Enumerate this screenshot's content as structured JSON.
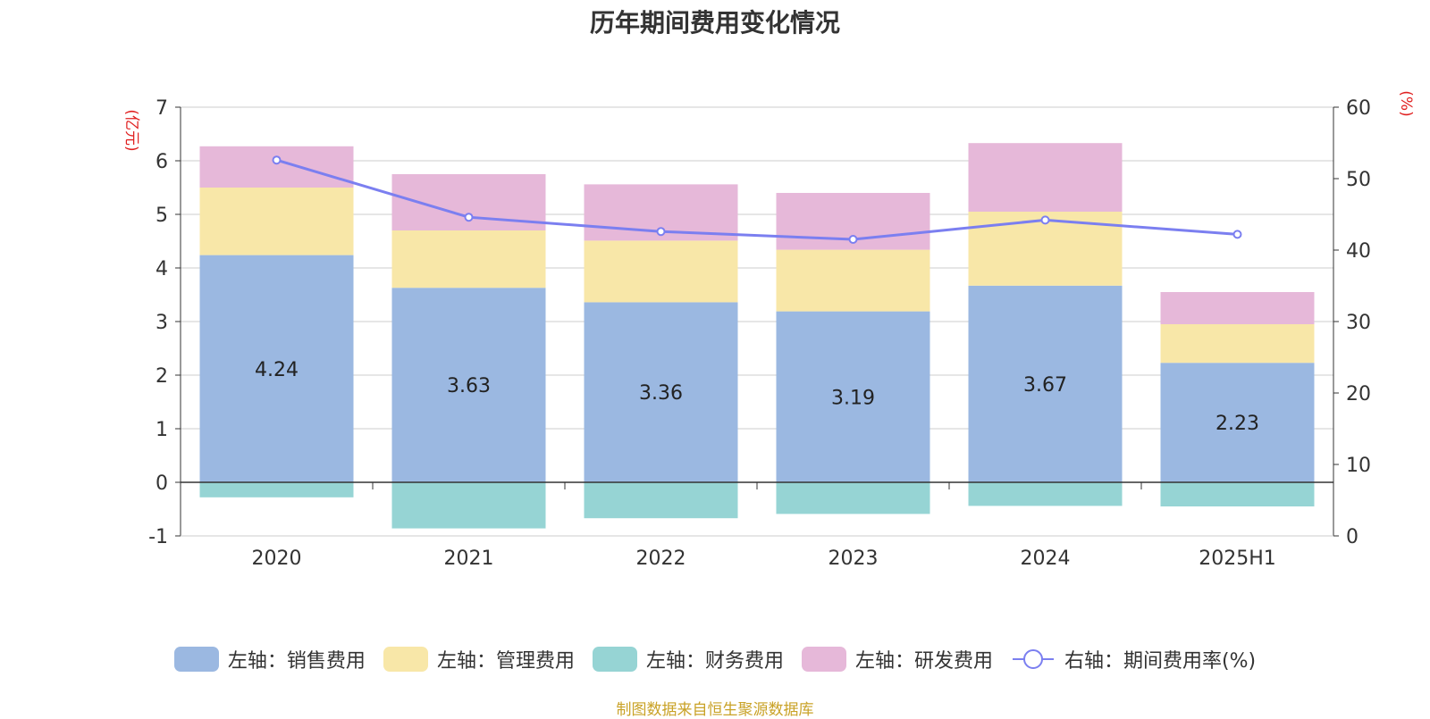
{
  "chart_data": {
    "type": "bar",
    "title": "历年期间费用变化情况",
    "categories": [
      "2020",
      "2021",
      "2022",
      "2023",
      "2024",
      "2025H1"
    ],
    "left_axis": {
      "unit_label": "(亿元)",
      "ylim": [
        -1,
        7
      ],
      "ticks": [
        "-1",
        "0",
        "1",
        "2",
        "3",
        "4",
        "5",
        "6",
        "7"
      ]
    },
    "right_axis": {
      "unit_label": "(%)",
      "ylim": [
        0,
        60
      ],
      "ticks": [
        "0",
        "10",
        "20",
        "30",
        "40",
        "50",
        "60"
      ]
    },
    "stacked": true,
    "series": [
      {
        "name": "左轴：销售费用",
        "color": "#9bb8e1",
        "values": [
          4.24,
          3.63,
          3.36,
          3.19,
          3.67,
          2.23
        ],
        "labels": [
          "4.24",
          "3.63",
          "3.36",
          "3.19",
          "3.67",
          "2.23"
        ]
      },
      {
        "name": "左轴：管理费用",
        "color": "#f8e7a8",
        "values": [
          1.26,
          1.07,
          1.15,
          1.15,
          1.38,
          0.72
        ]
      },
      {
        "name": "左轴：财务费用",
        "color": "#96d4d4",
        "values": [
          -0.28,
          -0.86,
          -0.67,
          -0.59,
          -0.44,
          -0.45
        ]
      },
      {
        "name": "左轴：研发费用",
        "color": "#e6b8d9",
        "values": [
          0.77,
          1.05,
          1.05,
          1.06,
          1.28,
          0.6
        ]
      }
    ],
    "line_series": {
      "name": "右轴：期间费用率(%)",
      "color": "#7b7ff0",
      "values": [
        52.6,
        44.6,
        42.6,
        41.5,
        44.2,
        42.2
      ]
    },
    "grid": true,
    "legend_position": "bottom"
  },
  "footer": {
    "source_text": "制图数据来自恒生聚源数据库"
  }
}
